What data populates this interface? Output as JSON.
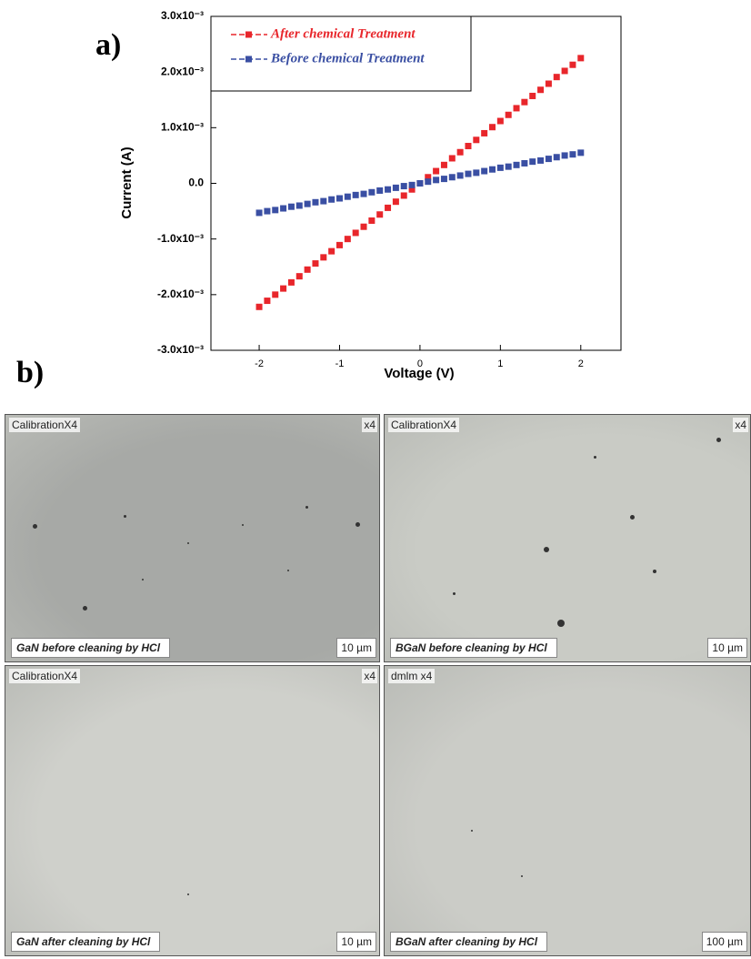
{
  "chart_data": {
    "type": "scatter",
    "panel_label": "a)",
    "x_label": "Voltage (V)",
    "y_label": "Current (A)",
    "x": [
      -2,
      -1.9,
      -1.8,
      -1.7,
      -1.6,
      -1.5,
      -1.4,
      -1.3,
      -1.2,
      -1.1,
      -1,
      -0.9,
      -0.8,
      -0.7,
      -0.6,
      -0.5,
      -0.4,
      -0.3,
      -0.2,
      -0.1,
      0,
      0.1,
      0.2,
      0.3,
      0.4,
      0.5,
      0.6,
      0.7,
      0.8,
      0.9,
      1,
      1.1,
      1.2,
      1.3,
      1.4,
      1.5,
      1.6,
      1.7,
      1.8,
      1.9,
      2
    ],
    "series": [
      {
        "name": "After chemical Treatment",
        "color": "#e8262b",
        "values": [
          -0.00222,
          -0.00211,
          -0.002,
          -0.00189,
          -0.00178,
          -0.00167,
          -0.00155,
          -0.00144,
          -0.00133,
          -0.00122,
          -0.00111,
          -0.001,
          -0.00089,
          -0.00078,
          -0.00067,
          -0.00056,
          -0.00044,
          -0.00033,
          -0.00022,
          -0.00011,
          0,
          0.00011,
          0.00022,
          0.00033,
          0.00045,
          0.00056,
          0.00067,
          0.00078,
          0.0009,
          0.00101,
          0.00112,
          0.00123,
          0.00135,
          0.00146,
          0.00157,
          0.00168,
          0.00179,
          0.00191,
          0.00202,
          0.00213,
          0.00225
        ]
      },
      {
        "name": "Before chemical Treatment",
        "color": "#3a4fa3",
        "values": [
          -0.00053,
          -0.0005,
          -0.00048,
          -0.00045,
          -0.00042,
          -0.0004,
          -0.00037,
          -0.00034,
          -0.00032,
          -0.00029,
          -0.00027,
          -0.00024,
          -0.00021,
          -0.00019,
          -0.00016,
          -0.00013,
          -0.00011,
          -8e-05,
          -5e-05,
          -3e-05,
          0,
          3e-05,
          6e-05,
          8e-05,
          0.00011,
          0.00014,
          0.00017,
          0.00019,
          0.00022,
          0.00025,
          0.00028,
          0.0003,
          0.00033,
          0.00036,
          0.00039,
          0.00041,
          0.00044,
          0.00047,
          0.0005,
          0.00052,
          0.00055
        ]
      }
    ],
    "xlim": [
      -2.6,
      2.5
    ],
    "ylim": [
      -0.003,
      0.003
    ],
    "xticks": [
      -2,
      -1,
      0,
      1,
      2
    ],
    "yticks": [
      {
        "value": -0.003,
        "label": "-3.0x10⁻³"
      },
      {
        "value": -0.002,
        "label": "-2.0x10⁻³"
      },
      {
        "value": -0.001,
        "label": "-1.0x10⁻³"
      },
      {
        "value": 0,
        "label": "0.0"
      },
      {
        "value": 0.001,
        "label": "1.0x10⁻³"
      },
      {
        "value": 0.002,
        "label": "2.0x10⁻³"
      },
      {
        "value": 0.003,
        "label": "3.0x10⁻³"
      }
    ],
    "legend": "upper left"
  },
  "figure_b": {
    "panel_label": "b)",
    "micrographs": [
      {
        "label": "CalibrationX4",
        "mag": "x4",
        "caption": "GaN before cleaning by HCl",
        "scale": "10 µm"
      },
      {
        "label": "CalibrationX4",
        "mag": "x4",
        "caption": "BGaN before cleaning by HCl",
        "scale": "10 µm"
      },
      {
        "label": "CalibrationX4",
        "mag": "x4",
        "caption": "GaN after cleaning by HCl",
        "scale": "10 µm"
      },
      {
        "label": "dmlm x4",
        "caption": "BGaN after cleaning by HCl",
        "scale": "100 µm"
      }
    ]
  }
}
